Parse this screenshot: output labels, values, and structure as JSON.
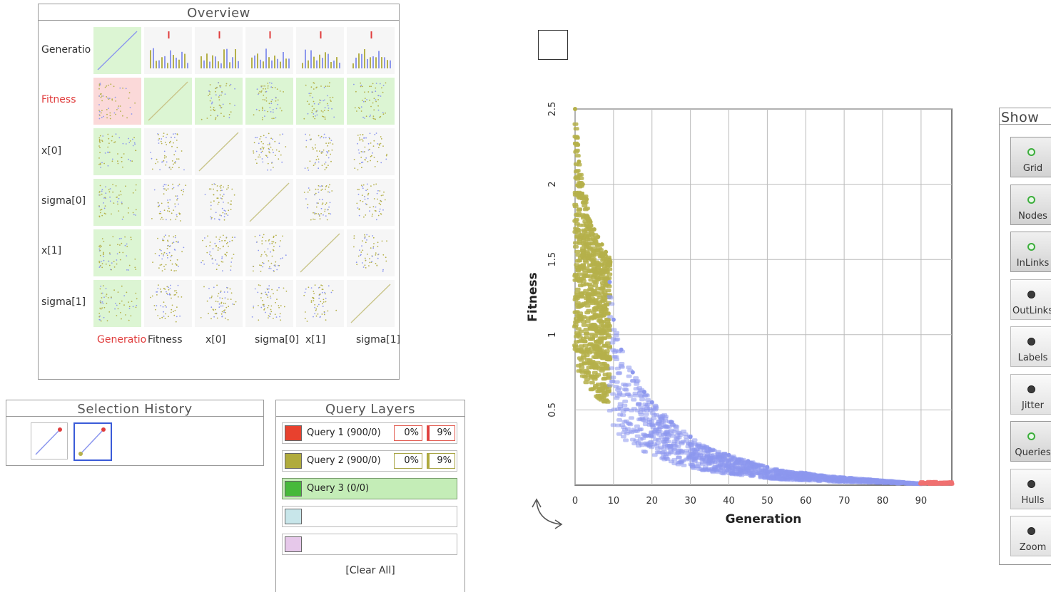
{
  "overview": {
    "title": "Overview",
    "row_labels": [
      "Generatio",
      "Fitness",
      "x[0]",
      "sigma[0]",
      "x[1]",
      "sigma[1]"
    ],
    "col_labels": [
      "Generatio",
      "Fitness",
      "x[0]",
      "sigma[0]",
      "x[1]",
      "sigma[1]"
    ],
    "highlighted_variable": "Fitness",
    "highlighted_color": "#e03c3c",
    "x_highlight_color": "#e03c3c"
  },
  "selection_history": {
    "title": "Selection History"
  },
  "query_layers": {
    "title": "Query Layers",
    "rows": [
      {
        "label": "Query 1 (900/0)",
        "color": "#e8412e",
        "pct_a": "0%",
        "pct_b": "9%",
        "active": false
      },
      {
        "label": "Query 2 (900/0)",
        "color": "#b0ab3c",
        "pct_a": "0%",
        "pct_b": "9%",
        "active": false
      },
      {
        "label": "Query 3 (0/0)",
        "color": "#46b93a",
        "active": true
      },
      {
        "label": "",
        "color": "#c8e6ea",
        "active": false
      },
      {
        "label": "",
        "color": "#e6c8ea",
        "active": false
      }
    ],
    "clear_all": "[Clear All]"
  },
  "chart_data": {
    "type": "scatter",
    "xlabel": "Generation",
    "ylabel": "Fitness",
    "xlim": [
      0,
      98
    ],
    "ylim": [
      0,
      2.5
    ],
    "xticks": [
      0,
      10,
      20,
      30,
      40,
      50,
      60,
      70,
      80,
      90
    ],
    "yticks": [
      0.5,
      1,
      1.5,
      2,
      2.5
    ],
    "grid": true,
    "series": [
      {
        "color": "#b5b04a",
        "x": [
          0,
          1,
          2,
          3,
          4,
          5,
          6,
          7,
          8,
          9
        ],
        "y": [
          2.5,
          2.15,
          2.0,
          1.9,
          1.75,
          1.7,
          1.65,
          1.6,
          1.55,
          1.5
        ]
      },
      {
        "color": "#8c97ee",
        "x": [
          9,
          10,
          12,
          15,
          18,
          20,
          25,
          30,
          35,
          40,
          45,
          50,
          55,
          60,
          65,
          70,
          75,
          80,
          85,
          90
        ],
        "y": [
          1.35,
          1.1,
          0.9,
          0.75,
          0.62,
          0.55,
          0.42,
          0.32,
          0.24,
          0.2,
          0.16,
          0.12,
          0.09,
          0.08,
          0.06,
          0.05,
          0.04,
          0.03,
          0.02,
          0.01
        ]
      },
      {
        "color": "#f07070",
        "x": [
          90,
          92,
          94,
          96,
          98
        ],
        "y": [
          0.01,
          0.01,
          0.01,
          0.01,
          0.01
        ]
      }
    ]
  },
  "show_panel": {
    "title": "Show",
    "buttons": [
      {
        "label": "Grid",
        "on": true
      },
      {
        "label": "Nodes",
        "on": true
      },
      {
        "label": "InLinks",
        "on": true
      },
      {
        "label": "OutLinks",
        "on": false
      },
      {
        "label": "Labels",
        "on": false
      },
      {
        "label": "Jitter",
        "on": false
      },
      {
        "label": "Queries",
        "on": true
      },
      {
        "label": "Hulls",
        "on": false
      },
      {
        "label": "Zoom",
        "on": false
      }
    ]
  }
}
